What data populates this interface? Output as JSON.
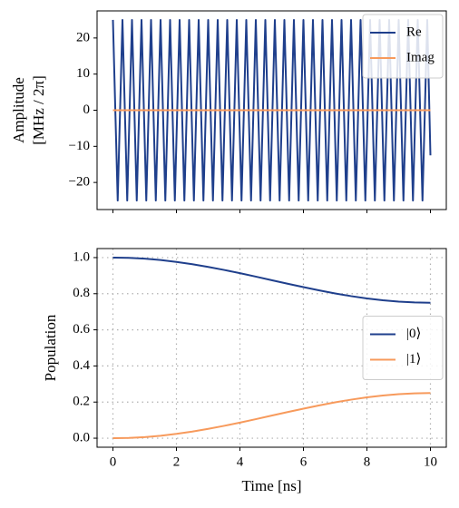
{
  "chart_data": [
    {
      "type": "line",
      "ylabel": [
        "Amplitude",
        "[MHz / 2π]"
      ],
      "x": [
        0,
        0.15,
        0.3,
        0.45,
        0.6,
        0.75,
        0.9,
        1.05,
        1.2,
        1.35,
        1.5,
        1.65,
        1.8,
        1.95,
        2.1,
        2.25,
        2.4,
        2.55,
        2.7,
        2.85,
        3,
        3.15,
        3.3,
        3.45,
        3.6,
        3.75,
        3.9,
        4.05,
        4.2,
        4.35,
        4.5,
        4.65,
        4.8,
        4.95,
        5.1,
        5.25,
        5.4,
        5.55,
        5.7,
        5.85,
        6,
        6.15,
        6.3,
        6.45,
        6.6,
        6.75,
        6.9,
        7.05,
        7.2,
        7.35,
        7.5,
        7.65,
        7.8,
        7.95,
        8.1,
        8.25,
        8.4,
        8.55,
        8.7,
        8.85,
        9,
        9.15,
        9.3,
        9.45,
        9.6,
        9.75,
        9.9,
        10
      ],
      "series": [
        {
          "name": "Re",
          "color": "#1f3f8c",
          "values": [
            25,
            -25,
            25,
            -25,
            25,
            -25,
            25,
            -25,
            25,
            -25,
            25,
            -25,
            25,
            -25,
            25,
            -25,
            25,
            -25,
            25,
            -25,
            25,
            -25,
            25,
            -25,
            25,
            -25,
            25,
            -25,
            25,
            -25,
            25,
            -25,
            25,
            -25,
            25,
            -25,
            25,
            -25,
            25,
            -25,
            25,
            -25,
            25,
            -25,
            25,
            -25,
            25,
            -25,
            25,
            -25,
            25,
            -25,
            25,
            -25,
            25,
            -25,
            25,
            -25,
            25,
            -25,
            25,
            -25,
            25,
            -25,
            25,
            -25,
            25,
            -12.5
          ]
        },
        {
          "name": "Imag",
          "color": "#f79a5c",
          "values": [
            0,
            0,
            0,
            0,
            0,
            0,
            0,
            0,
            0,
            0,
            0,
            0,
            0,
            0,
            0,
            0,
            0,
            0,
            0,
            0,
            0,
            0,
            0,
            0,
            0,
            0,
            0,
            0,
            0,
            0,
            0,
            0,
            0,
            0,
            0,
            0,
            0,
            0,
            0,
            0,
            0,
            0,
            0,
            0,
            0,
            0,
            0,
            0,
            0,
            0,
            0,
            0,
            0,
            0,
            0,
            0,
            0,
            0,
            0,
            0,
            0,
            0,
            0,
            0,
            0,
            0,
            0,
            0
          ]
        }
      ],
      "xlim": [
        -0.5,
        10.5
      ],
      "xticks": [
        0,
        2,
        4,
        6,
        8,
        10
      ],
      "ylim": [
        -27.5,
        27.5
      ],
      "yticks": [
        {
          "value": -20,
          "label": "−20"
        },
        {
          "value": -10,
          "label": "−10"
        },
        0,
        10,
        20
      ],
      "grid": false,
      "legend": "upper right"
    },
    {
      "type": "line",
      "xlabel": "Time [ns]",
      "ylabel": [
        "Population"
      ],
      "x": [
        0,
        0.5,
        1,
        1.5,
        2,
        2.5,
        3,
        3.5,
        4,
        4.5,
        5,
        5.5,
        6,
        6.5,
        7,
        7.5,
        8,
        8.5,
        9,
        9.5,
        10
      ],
      "series": [
        {
          "name": "|0⟩",
          "color": "#1f3f8c",
          "values": [
            1,
            0.9985,
            0.9939,
            0.9864,
            0.9761,
            0.9634,
            0.9485,
            0.9317,
            0.9136,
            0.8945,
            0.875,
            0.8555,
            0.8364,
            0.8183,
            0.8015,
            0.7866,
            0.7739,
            0.7636,
            0.7561,
            0.7515,
            0.75
          ]
        },
        {
          "name": "|1⟩",
          "color": "#f79a5c",
          "values": [
            0,
            0.0015,
            0.0061,
            0.0136,
            0.0239,
            0.0366,
            0.0515,
            0.0683,
            0.0864,
            0.1055,
            0.125,
            0.1445,
            0.1636,
            0.1817,
            0.1985,
            0.2134,
            0.2261,
            0.2364,
            0.2439,
            0.2485,
            0.25
          ]
        }
      ],
      "xlim": [
        -0.5,
        10.5
      ],
      "xticks": [
        0,
        2,
        4,
        6,
        8,
        10
      ],
      "xticklabels": true,
      "ylim": [
        -0.05,
        1.05
      ],
      "yticks": [
        {
          "value": 0,
          "label": "0.0"
        },
        0.2,
        0.4,
        0.6,
        0.8,
        {
          "value": 1,
          "label": "1.0"
        }
      ],
      "grid": true,
      "legend": "center right"
    }
  ]
}
